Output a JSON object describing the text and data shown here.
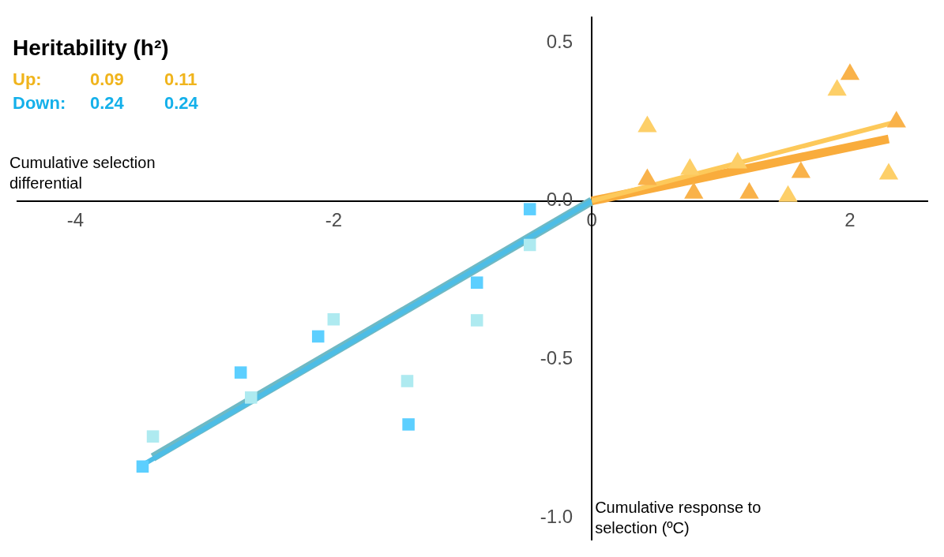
{
  "chart_data": {
    "type": "scatter",
    "title": "Heritability (h²)",
    "xlabel": "Cumulative selection differential",
    "ylabel": "Cumulative response to selection (ºC)",
    "annotations": [
      "Up:",
      "0.09",
      "0.11",
      "Down:",
      "0.24",
      "0.24"
    ],
    "xlim": [
      -4.45,
      2.6
    ],
    "ylim": [
      -1.07,
      0.58
    ],
    "xticks": [
      -4,
      -2,
      0,
      2
    ],
    "yticks": [
      {
        "value": -1,
        "label": "-1.0"
      },
      {
        "value": -0.5,
        "label": "-0.5"
      },
      {
        "value": 0,
        "label": "0.0"
      },
      {
        "value": 0.5,
        "label": "0.5"
      }
    ],
    "grid": false,
    "legend": false,
    "series": [
      {
        "marker": "triangle",
        "color": "#fdcf68",
        "x": [
          0.43,
          0.76,
          1.13,
          1.52,
          1.9,
          2.3
        ],
        "values": [
          0.235,
          0.1,
          0.12,
          0.015,
          0.35,
          0.085
        ]
      },
      {
        "marker": "triangle",
        "color": "#f9b24a",
        "x": [
          0.43,
          0.79,
          1.22,
          1.62,
          2.0,
          2.36
        ],
        "values": [
          0.068,
          0.025,
          0.025,
          0.09,
          0.4,
          0.25
        ]
      },
      {
        "marker": "square",
        "color": "#5ccfff",
        "x": [
          -0.48,
          -0.89,
          -1.42,
          -2.12,
          -2.72,
          -3.48
        ],
        "values": [
          -0.026,
          -0.258,
          -0.706,
          -0.428,
          -0.542,
          -0.839
        ]
      },
      {
        "marker": "square",
        "color": "#aeeaf0",
        "x": [
          -0.48,
          -0.89,
          -1.43,
          -2.0,
          -2.64,
          -3.4
        ],
        "values": [
          -0.139,
          -0.377,
          -0.569,
          -0.374,
          -0.621,
          -0.744
        ]
      },
      {
        "type": "line",
        "marker": "none",
        "color": "#fdc95a",
        "x": [
          0,
          2.36
        ],
        "values": [
          0,
          0.25
        ]
      },
      {
        "type": "line",
        "marker": "none",
        "color": "#f9ac3c",
        "x": [
          0,
          2.3
        ],
        "values": [
          0,
          0.196
        ]
      },
      {
        "type": "line",
        "marker": "none",
        "color": "#4dbde6",
        "x": [
          0,
          -3.48
        ],
        "values": [
          0,
          -0.834
        ]
      },
      {
        "type": "line",
        "marker": "none",
        "color": "#6fb9c4",
        "x": [
          0,
          -3.4
        ],
        "values": [
          0,
          -0.81
        ]
      }
    ]
  }
}
